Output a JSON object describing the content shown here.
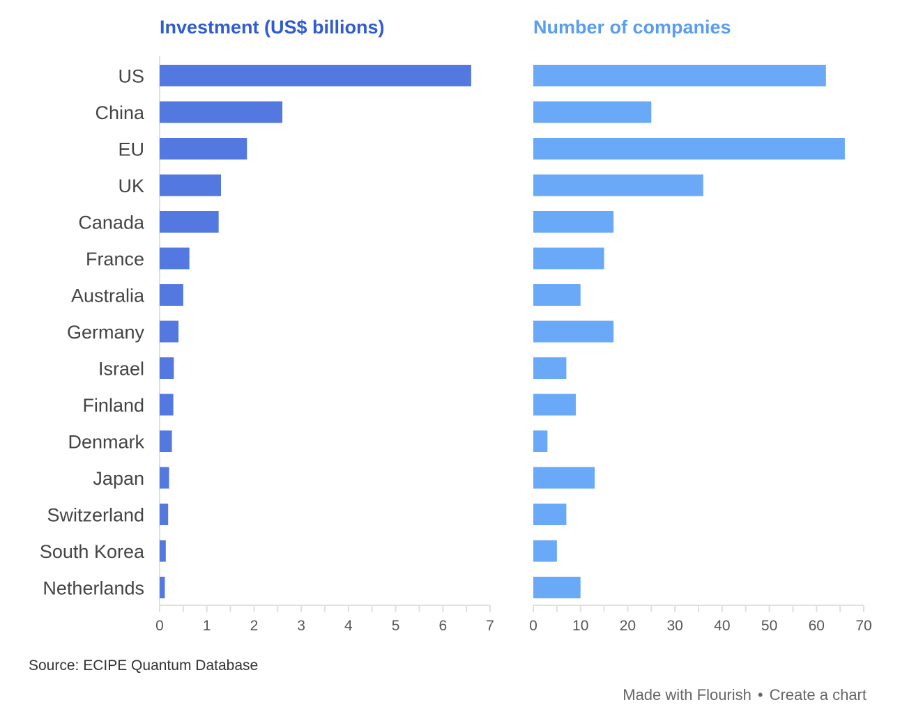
{
  "chart_data": [
    {
      "type": "bar",
      "orientation": "horizontal",
      "title": "Investment (US$ billions)",
      "categories": [
        "US",
        "China",
        "EU",
        "UK",
        "Canada",
        "France",
        "Australia",
        "Germany",
        "Israel",
        "Finland",
        "Denmark",
        "Japan",
        "Switzerland",
        "South Korea",
        "Netherlands"
      ],
      "values": [
        6.6,
        2.6,
        1.85,
        1.3,
        1.25,
        0.63,
        0.5,
        0.4,
        0.3,
        0.29,
        0.26,
        0.2,
        0.18,
        0.13,
        0.11
      ],
      "xlim": [
        0,
        7
      ],
      "xticks": [
        0,
        1,
        2,
        3,
        4,
        5,
        6,
        7
      ],
      "color": "#5379e0"
    },
    {
      "type": "bar",
      "orientation": "horizontal",
      "title": "Number of companies",
      "categories": [
        "US",
        "China",
        "EU",
        "UK",
        "Canada",
        "France",
        "Australia",
        "Germany",
        "Israel",
        "Finland",
        "Denmark",
        "Japan",
        "Switzerland",
        "South Korea",
        "Netherlands"
      ],
      "values": [
        62,
        25,
        66,
        36,
        17,
        15,
        10,
        17,
        7,
        9,
        3,
        13,
        7,
        5,
        10
      ],
      "xlim": [
        0,
        70
      ],
      "xticks": [
        0,
        10,
        20,
        30,
        40,
        50,
        60,
        70
      ],
      "color": "#6aa9f7"
    }
  ],
  "footer": {
    "source": "Source: ECIPE Quantum Database",
    "made_with": "Made with Flourish",
    "separator": "•",
    "create": "Create a chart"
  }
}
